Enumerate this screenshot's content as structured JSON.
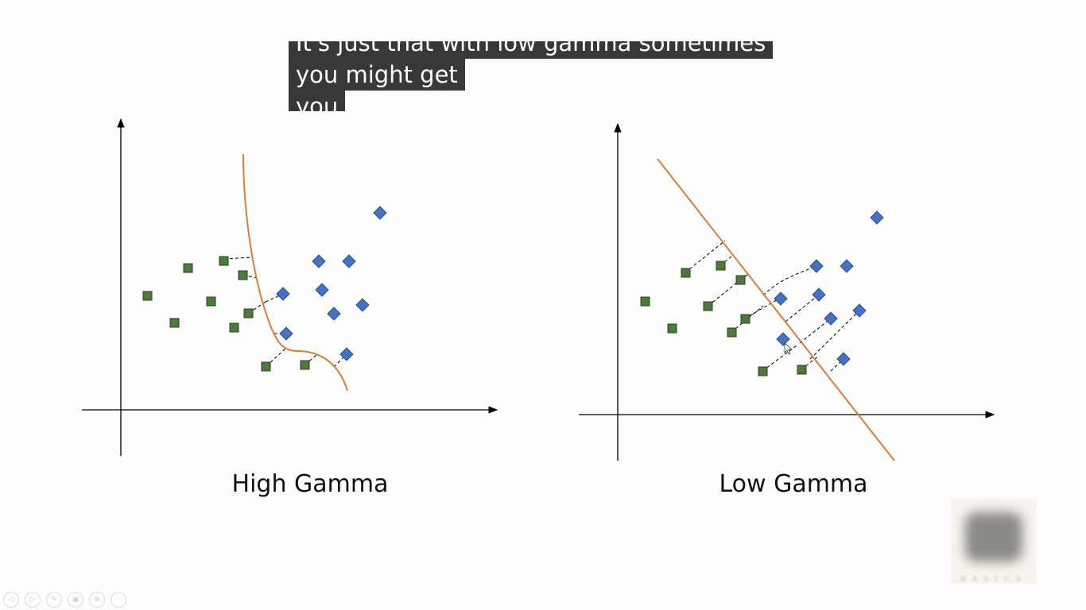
{
  "caption": {
    "line1": "It's just that with low gamma sometimes",
    "line2": "you might get",
    "line3": "you"
  },
  "plots": [
    {
      "label": "High Gamma",
      "boundary_shape": "curved",
      "colors": {
        "class_square": "#4a7b3a",
        "class_diamond": "#4472c4",
        "boundary": "#e07b35",
        "axis": "#000000"
      }
    },
    {
      "label": "Low Gamma",
      "boundary_shape": "straight",
      "colors": {
        "class_square": "#4a7b3a",
        "class_diamond": "#4472c4",
        "boundary": "#e07b35",
        "axis": "#000000"
      }
    }
  ],
  "watermark": {
    "text": "BASICS"
  },
  "slide_controls": [
    {
      "icon": "prev-icon",
      "glyph": "◁"
    },
    {
      "icon": "next-icon",
      "glyph": "▷"
    },
    {
      "icon": "pen-icon",
      "glyph": "✎"
    },
    {
      "icon": "slides-icon",
      "glyph": "▣"
    },
    {
      "icon": "zoom-icon",
      "glyph": "⊕"
    },
    {
      "icon": "more-icon",
      "glyph": "⋯"
    }
  ]
}
